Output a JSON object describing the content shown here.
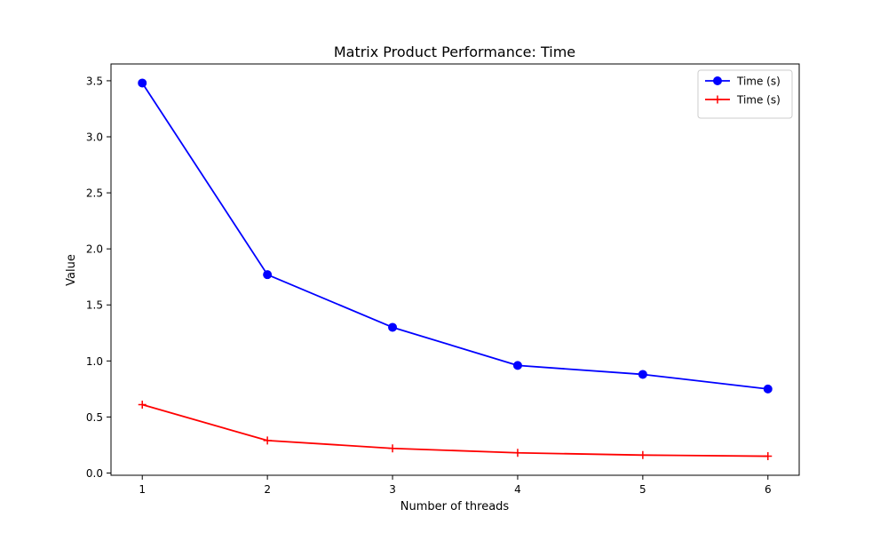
{
  "chart_data": {
    "type": "line",
    "title": "Matrix Product Performance: Time",
    "xlabel": "Number of threads",
    "ylabel": "Value",
    "x": [
      1,
      2,
      3,
      4,
      5,
      6
    ],
    "xlim": [
      0.75,
      6.25
    ],
    "ylim": [
      -0.02,
      3.65
    ],
    "xticks": [
      1,
      2,
      3,
      4,
      5,
      6
    ],
    "yticks": [
      0.0,
      0.5,
      1.0,
      1.5,
      2.0,
      2.5,
      3.0,
      3.5
    ],
    "ytick_labels": [
      "0.0",
      "0.5",
      "1.0",
      "1.5",
      "2.0",
      "2.5",
      "3.0",
      "3.5"
    ],
    "grid": false,
    "legend_position": "top-right",
    "series": [
      {
        "name": "Time (s)",
        "color": "#0000ff",
        "marker": "circle",
        "values": [
          3.48,
          1.77,
          1.3,
          0.96,
          0.88,
          0.75
        ]
      },
      {
        "name": "Time (s)",
        "color": "#ff0000",
        "marker": "plus",
        "values": [
          0.61,
          0.29,
          0.22,
          0.18,
          0.16,
          0.15
        ]
      }
    ]
  }
}
